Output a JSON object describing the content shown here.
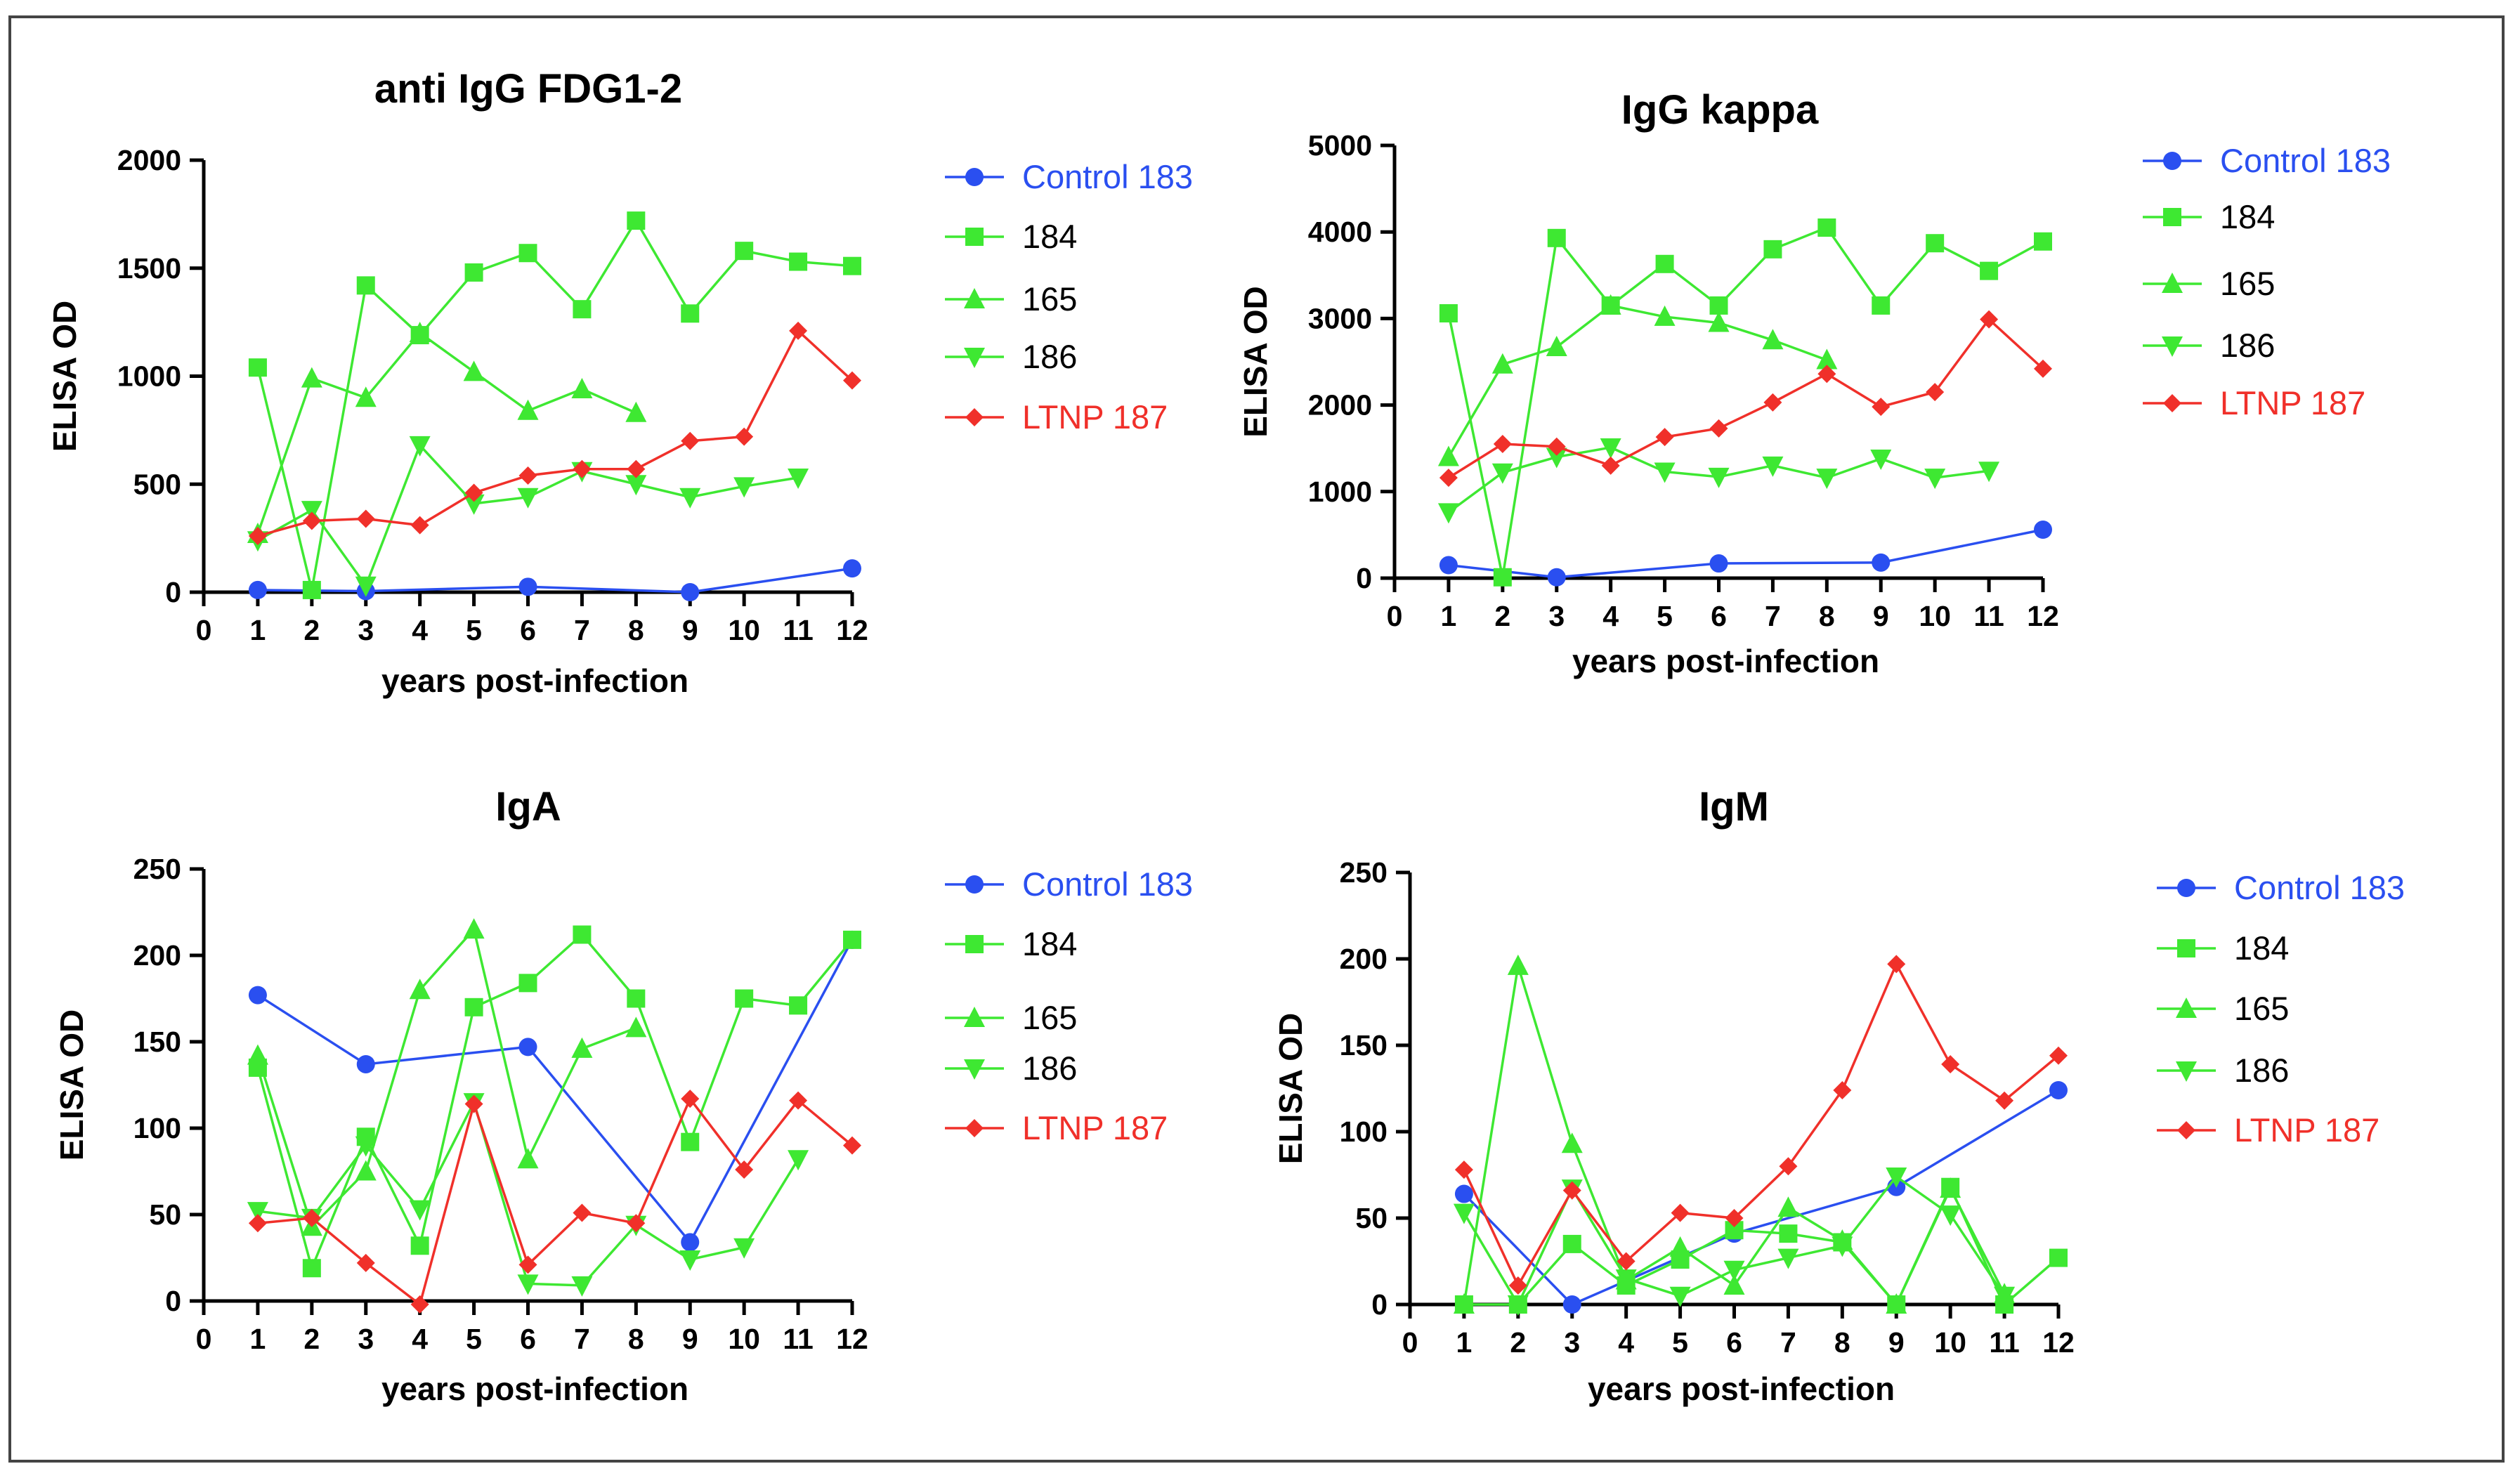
{
  "colors": {
    "control": "#2a4ff0",
    "hiv": "#3ee832",
    "ltnp": "#f0302a"
  },
  "chart_data": [
    {
      "type": "line",
      "title": "anti IgG FDG1-2",
      "xlabel": "years post-infection",
      "ylabel": "ELISA OD",
      "xlim": [
        0,
        12
      ],
      "ylim": [
        0,
        2000
      ],
      "xticks": [
        "0",
        "1",
        "2",
        "3",
        "4",
        "5",
        "6",
        "7",
        "8",
        "9",
        "10",
        "11",
        "12"
      ],
      "yticks": [
        "0",
        "500",
        "1000",
        "1500",
        "2000"
      ],
      "yvals": [
        0,
        500,
        1000,
        1500,
        2000
      ],
      "legend_position": "right",
      "series": [
        {
          "name": "Control 183",
          "color_key": "control",
          "marker": "circle",
          "x": [
            1,
            3,
            6,
            9,
            12
          ],
          "y": [
            10,
            5,
            25,
            0,
            110
          ]
        },
        {
          "name": "184",
          "color_key": "hiv",
          "marker": "square",
          "x": [
            1,
            2,
            3,
            4,
            5,
            6,
            7,
            8,
            9,
            10,
            11,
            12
          ],
          "y": [
            1040,
            10,
            1420,
            1190,
            1480,
            1570,
            1310,
            1720,
            1290,
            1580,
            1530,
            1510
          ]
        },
        {
          "name": "165",
          "color_key": "hiv",
          "marker": "triangle-up",
          "x": [
            1,
            2,
            3,
            4,
            5,
            6,
            7,
            8
          ],
          "y": [
            270,
            990,
            900,
            1200,
            1020,
            840,
            940,
            830
          ]
        },
        {
          "name": "186",
          "color_key": "hiv",
          "marker": "triangle-down",
          "x": [
            1,
            2,
            3,
            4,
            5,
            6,
            7,
            8,
            9,
            10,
            11
          ],
          "y": [
            240,
            380,
            30,
            680,
            410,
            440,
            560,
            500,
            440,
            490,
            530
          ]
        },
        {
          "name": "LTNP 187",
          "color_key": "ltnp",
          "marker": "diamond",
          "x": [
            1,
            2,
            3,
            4,
            5,
            6,
            7,
            8,
            9,
            10,
            11,
            12
          ],
          "y": [
            260,
            330,
            340,
            310,
            460,
            540,
            570,
            570,
            700,
            720,
            1210,
            980
          ]
        }
      ]
    },
    {
      "type": "line",
      "title": "IgG kappa",
      "xlabel": "years post-infection",
      "ylabel": "ELISA OD",
      "xlim": [
        0,
        12
      ],
      "ylim": [
        0,
        5000
      ],
      "xticks": [
        "0",
        "1",
        "2",
        "3",
        "4",
        "5",
        "6",
        "7",
        "8",
        "9",
        "10",
        "11",
        "12"
      ],
      "yticks": [
        "0",
        "1000",
        "2000",
        "3000",
        "4000",
        "5000"
      ],
      "yvals": [
        0,
        1000,
        2000,
        3000,
        4000,
        5000
      ],
      "legend_position": "right",
      "series": [
        {
          "name": "Control 183",
          "color_key": "control",
          "marker": "circle",
          "x": [
            1,
            3,
            6,
            9,
            12
          ],
          "y": [
            150,
            10,
            170,
            180,
            560
          ]
        },
        {
          "name": "184",
          "color_key": "hiv",
          "marker": "square",
          "x": [
            1,
            2,
            3,
            4,
            5,
            6,
            7,
            8,
            9,
            10,
            11,
            12
          ],
          "y": [
            3060,
            10,
            3930,
            3150,
            3630,
            3150,
            3800,
            4050,
            3150,
            3870,
            3550,
            3890
          ]
        },
        {
          "name": "165",
          "color_key": "hiv",
          "marker": "triangle-up",
          "x": [
            1,
            2,
            3,
            4,
            5,
            6,
            7,
            8
          ],
          "y": [
            1400,
            2470,
            2670,
            3150,
            3020,
            2950,
            2750,
            2520
          ]
        },
        {
          "name": "186",
          "color_key": "hiv",
          "marker": "triangle-down",
          "x": [
            1,
            2,
            3,
            4,
            5,
            6,
            7,
            8,
            9,
            10,
            11
          ],
          "y": [
            760,
            1220,
            1400,
            1510,
            1230,
            1170,
            1300,
            1160,
            1380,
            1160,
            1240
          ]
        },
        {
          "name": "LTNP 187",
          "color_key": "ltnp",
          "marker": "diamond",
          "x": [
            1,
            2,
            3,
            4,
            5,
            6,
            7,
            8,
            9,
            10,
            11,
            12
          ],
          "y": [
            1160,
            1550,
            1520,
            1300,
            1630,
            1730,
            2030,
            2360,
            1980,
            2150,
            2990,
            2420
          ]
        }
      ]
    },
    {
      "type": "line",
      "title": "IgA",
      "xlabel": "years post-infection",
      "ylabel": "ELISA OD",
      "xlim": [
        0,
        12
      ],
      "ylim": [
        0,
        250
      ],
      "xticks": [
        "0",
        "1",
        "2",
        "3",
        "4",
        "5",
        "6",
        "7",
        "8",
        "9",
        "10",
        "11",
        "12"
      ],
      "yticks": [
        "0",
        "50",
        "100",
        "150",
        "200",
        "250"
      ],
      "yvals": [
        0,
        50,
        100,
        150,
        200,
        250
      ],
      "legend_position": "right",
      "series": [
        {
          "name": "Control 183",
          "color_key": "control",
          "marker": "circle",
          "x": [
            1,
            3,
            6,
            9,
            12
          ],
          "y": [
            177,
            137,
            147,
            34,
            209
          ]
        },
        {
          "name": "184",
          "color_key": "hiv",
          "marker": "square",
          "x": [
            1,
            2,
            3,
            4,
            5,
            6,
            7,
            8,
            9,
            10,
            11,
            12
          ],
          "y": [
            135,
            19,
            95,
            32,
            170,
            184,
            212,
            175,
            92,
            175,
            171,
            209
          ]
        },
        {
          "name": "165",
          "color_key": "hiv",
          "marker": "triangle-up",
          "x": [
            1,
            2,
            3,
            4,
            5,
            6,
            7,
            8
          ],
          "y": [
            142,
            43,
            75,
            180,
            215,
            82,
            146,
            158
          ]
        },
        {
          "name": "186",
          "color_key": "hiv",
          "marker": "triangle-down",
          "x": [
            1,
            2,
            3,
            4,
            5,
            6,
            7,
            8,
            9,
            10,
            11
          ],
          "y": [
            52,
            48,
            90,
            53,
            115,
            10,
            9,
            44,
            24,
            31,
            82
          ]
        },
        {
          "name": "LTNP 187",
          "color_key": "ltnp",
          "marker": "diamond",
          "x": [
            1,
            2,
            3,
            4,
            5,
            6,
            7,
            8,
            9,
            10,
            11,
            12
          ],
          "y": [
            45,
            48,
            22,
            -2,
            114,
            21,
            51,
            45,
            117,
            76,
            116,
            90
          ]
        }
      ]
    },
    {
      "type": "line",
      "title": "IgM",
      "xlabel": "years post-infection",
      "ylabel": "ELISA OD",
      "xlim": [
        0,
        12
      ],
      "ylim": [
        0,
        250
      ],
      "xticks": [
        "0",
        "1",
        "2",
        "3",
        "4",
        "5",
        "6",
        "7",
        "8",
        "9",
        "10",
        "11",
        "12"
      ],
      "yticks": [
        "0",
        "50",
        "100",
        "150",
        "200",
        "250"
      ],
      "yvals": [
        0,
        50,
        100,
        150,
        200,
        250
      ],
      "legend_position": "right",
      "series": [
        {
          "name": "Control 183",
          "color_key": "control",
          "marker": "circle",
          "x": [
            1,
            3,
            6,
            9,
            12
          ],
          "y": [
            64,
            0,
            41,
            68,
            124
          ]
        },
        {
          "name": "184",
          "color_key": "hiv",
          "marker": "square",
          "x": [
            1,
            2,
            3,
            4,
            5,
            6,
            7,
            8,
            9,
            10,
            11,
            12
          ],
          "y": [
            0,
            0,
            35,
            11,
            26,
            43,
            41,
            36,
            0,
            68,
            0,
            27
          ]
        },
        {
          "name": "165",
          "color_key": "hiv",
          "marker": "triangle-up",
          "x": [
            1,
            2,
            3,
            4,
            5,
            6,
            7,
            8,
            9,
            10,
            11
          ],
          "y": [
            0,
            196,
            93,
            14,
            33,
            11,
            56,
            37,
            0,
            67,
            6
          ]
        },
        {
          "name": "186",
          "color_key": "hiv",
          "marker": "triangle-down",
          "x": [
            1,
            2,
            3,
            4,
            5,
            6,
            7,
            8,
            9,
            10,
            11
          ],
          "y": [
            53,
            0,
            67,
            15,
            5,
            20,
            27,
            34,
            74,
            52,
            5
          ]
        },
        {
          "name": "LTNP 187",
          "color_key": "ltnp",
          "marker": "diamond",
          "x": [
            1,
            2,
            3,
            4,
            5,
            6,
            7,
            8,
            9,
            10,
            11,
            12
          ],
          "y": [
            78,
            11,
            66,
            25,
            53,
            50,
            80,
            124,
            197,
            139,
            118,
            144
          ]
        }
      ]
    }
  ]
}
